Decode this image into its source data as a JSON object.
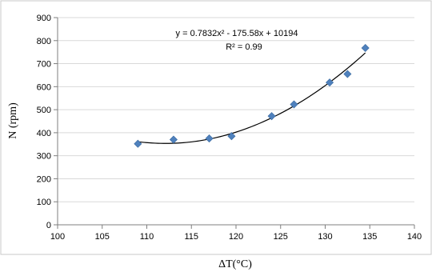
{
  "chart_data": {
    "type": "scatter",
    "title": "",
    "xlabel": "ΔT(°C)",
    "ylabel": "N (rpm)",
    "xlim": [
      100,
      140
    ],
    "ylim": [
      0,
      900
    ],
    "x_ticks": [
      "100",
      "105",
      "110",
      "115",
      "120",
      "125",
      "130",
      "135",
      "140"
    ],
    "y_ticks": [
      "0",
      "100",
      "200",
      "300",
      "400",
      "500",
      "600",
      "700",
      "800",
      "900"
    ],
    "grid": true,
    "legend": false,
    "marker_color": "#4F81BD",
    "trend_color": "#000000",
    "points": [
      {
        "x": 109,
        "y": 352
      },
      {
        "x": 113,
        "y": 370
      },
      {
        "x": 117,
        "y": 375
      },
      {
        "x": 119.5,
        "y": 385
      },
      {
        "x": 124,
        "y": 472
      },
      {
        "x": 126.5,
        "y": 523
      },
      {
        "x": 130.5,
        "y": 618
      },
      {
        "x": 132.5,
        "y": 655
      },
      {
        "x": 134.5,
        "y": 768
      }
    ],
    "trendline": {
      "type": "polynomial",
      "order": 2,
      "coefficients": [
        0.7832,
        -175.58,
        10194
      ],
      "x_range": [
        109,
        134.5
      ],
      "equation_label": "y = 0.7832x² - 175.58x + 10194",
      "r2_label": "R² = 0.99"
    }
  }
}
